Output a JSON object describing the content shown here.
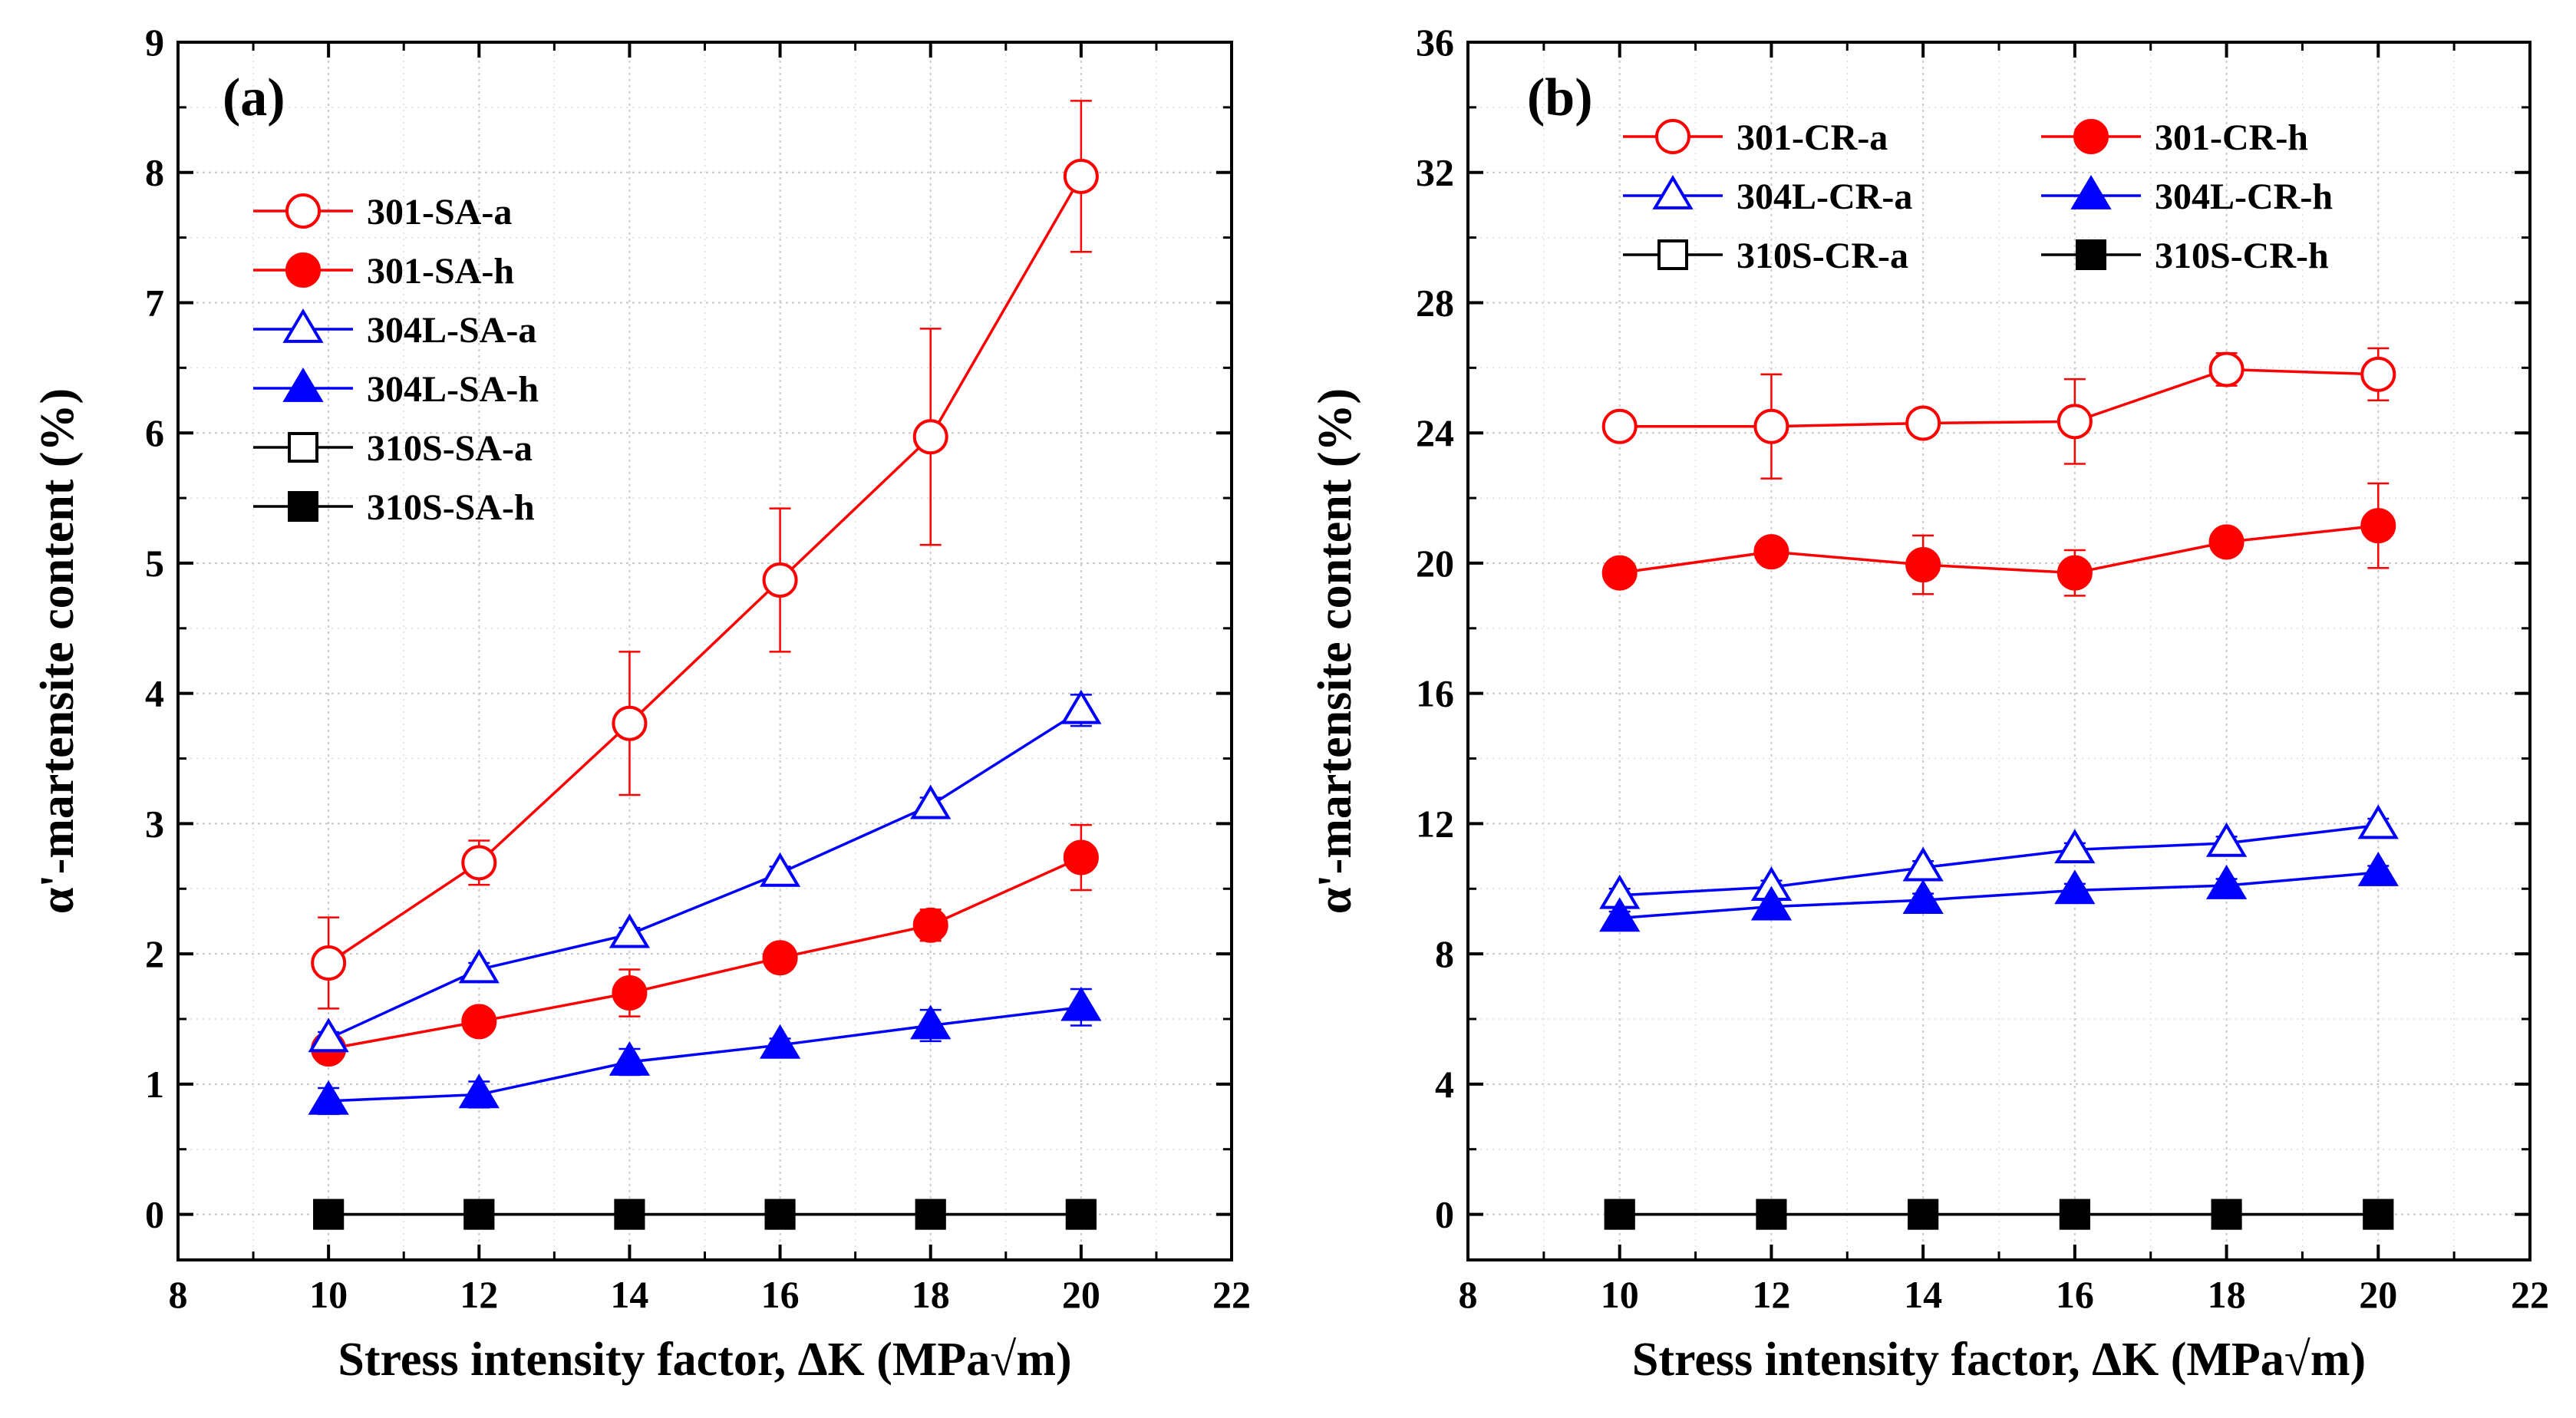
{
  "chart_data": [
    {
      "type": "line",
      "panel_label": "(a)",
      "xlabel": "Stress intensity  factor, ΔK (MPa√m)",
      "ylabel": "α'-martensite  content (%)",
      "xlim": [
        8,
        22
      ],
      "ylim": [
        -0.35,
        9
      ],
      "xticks": [
        8,
        10,
        12,
        14,
        16,
        18,
        20,
        22
      ],
      "yticks": [
        0,
        1,
        2,
        3,
        4,
        5,
        6,
        7,
        8,
        9
      ],
      "grid": true,
      "legend_position": "top-left",
      "legend_columns": 1,
      "x": [
        10,
        12,
        14,
        16,
        18,
        20
      ],
      "series": [
        {
          "name": "301-SA-a",
          "color": "#ff0000",
          "marker": "circle",
          "filled": false,
          "values": [
            1.93,
            2.7,
            3.77,
            4.87,
            5.97,
            7.97
          ],
          "errors": [
            0.35,
            0.17,
            0.55,
            0.55,
            0.83,
            0.58
          ]
        },
        {
          "name": "301-SA-h",
          "color": "#ff0000",
          "marker": "circle",
          "filled": true,
          "values": [
            1.27,
            1.48,
            1.7,
            1.97,
            2.22,
            2.74
          ],
          "errors": [
            0.08,
            0.05,
            0.18,
            0.1,
            0.12,
            0.25
          ]
        },
        {
          "name": "304L-SA-a",
          "color": "#0000ff",
          "marker": "triangle",
          "filled": false,
          "values": [
            1.35,
            1.88,
            2.15,
            2.62,
            3.14,
            3.87
          ],
          "errors": [
            0.05,
            0.05,
            0.05,
            0.05,
            0.06,
            0.12
          ]
        },
        {
          "name": "304L-SA-h",
          "color": "#0000ff",
          "marker": "triangle",
          "filled": true,
          "values": [
            0.87,
            0.92,
            1.17,
            1.3,
            1.45,
            1.59
          ],
          "errors": [
            0.1,
            0.1,
            0.1,
            0.05,
            0.12,
            0.14
          ]
        },
        {
          "name": "310S-SA-a",
          "color": "#000000",
          "marker": "square",
          "filled": false,
          "values": [
            0,
            0,
            0,
            0,
            0,
            0
          ],
          "errors": [
            0,
            0,
            0,
            0,
            0,
            0
          ]
        },
        {
          "name": "310S-SA-h",
          "color": "#000000",
          "marker": "square",
          "filled": true,
          "values": [
            0,
            0,
            0,
            0,
            0,
            0
          ],
          "errors": [
            0,
            0,
            0,
            0,
            0,
            0
          ]
        }
      ]
    },
    {
      "type": "line",
      "panel_label": "(b)",
      "xlabel": "Stress intensity  factor, ΔK (MPa√m)",
      "ylabel": "α'-martensite  content (%)",
      "xlim": [
        8,
        22
      ],
      "ylim": [
        -1.4,
        36
      ],
      "xticks": [
        8,
        10,
        12,
        14,
        16,
        18,
        20,
        22
      ],
      "yticks": [
        0,
        4,
        8,
        12,
        16,
        20,
        24,
        28,
        32,
        36
      ],
      "grid": true,
      "legend_position": "top",
      "legend_columns": 2,
      "x": [
        10,
        12,
        14,
        16,
        18,
        20
      ],
      "series": [
        {
          "name": "301-CR-a",
          "color": "#ff0000",
          "marker": "circle",
          "filled": false,
          "values": [
            24.2,
            24.2,
            24.3,
            24.35,
            25.95,
            25.8
          ],
          "errors": [
            0.4,
            1.6,
            0.2,
            1.3,
            0.5,
            0.8
          ]
        },
        {
          "name": "301-CR-h",
          "color": "#ff0000",
          "marker": "circle",
          "filled": true,
          "values": [
            19.7,
            20.35,
            19.95,
            19.7,
            20.65,
            21.15
          ],
          "errors": [
            0.2,
            0.2,
            0.9,
            0.7,
            0.2,
            1.3
          ]
        },
        {
          "name": "304L-CR-a",
          "color": "#0000ff",
          "marker": "triangle",
          "filled": false,
          "values": [
            9.8,
            10.05,
            10.65,
            11.2,
            11.4,
            11.95
          ],
          "errors": [
            0.2,
            0.2,
            0.2,
            0.2,
            0.2,
            0.2
          ]
        },
        {
          "name": "304L-CR-h",
          "color": "#0000ff",
          "marker": "triangle",
          "filled": true,
          "values": [
            9.1,
            9.45,
            9.65,
            9.95,
            10.1,
            10.5
          ],
          "errors": [
            0.2,
            0.2,
            0.2,
            0.2,
            0.2,
            0.2
          ]
        },
        {
          "name": "310S-CR-a",
          "color": "#000000",
          "marker": "square",
          "filled": false,
          "values": [
            0,
            0,
            0,
            0,
            0,
            0
          ],
          "errors": [
            0,
            0,
            0,
            0,
            0,
            0
          ]
        },
        {
          "name": "310S-CR-h",
          "color": "#000000",
          "marker": "square",
          "filled": true,
          "values": [
            0,
            0,
            0,
            0,
            0,
            0
          ],
          "errors": [
            0,
            0,
            0,
            0,
            0,
            0
          ]
        }
      ]
    }
  ]
}
